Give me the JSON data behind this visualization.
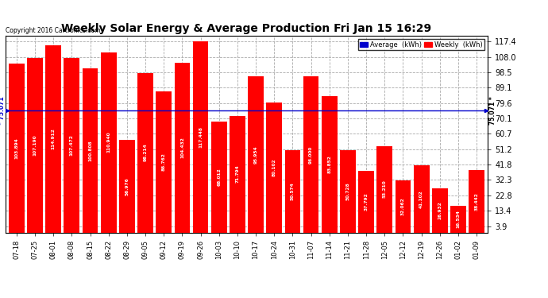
{
  "title": "Weekly Solar Energy & Average Production Fri Jan 15 16:29",
  "copyright": "Copyright 2016 Cartronics.com",
  "categories": [
    "07-18",
    "07-25",
    "08-01",
    "08-08",
    "08-15",
    "08-22",
    "08-29",
    "09-05",
    "09-12",
    "09-19",
    "09-26",
    "10-03",
    "10-10",
    "10-17",
    "10-24",
    "10-31",
    "11-07",
    "11-14",
    "11-21",
    "11-28",
    "12-05",
    "12-12",
    "12-19",
    "12-26",
    "01-02",
    "01-09"
  ],
  "values": [
    103.894,
    107.19,
    114.912,
    107.472,
    100.808,
    110.94,
    56.976,
    98.214,
    86.762,
    104.432,
    117.448,
    68.012,
    71.794,
    95.954,
    80.102,
    50.574,
    96.0,
    83.852,
    50.728,
    37.792,
    53.21,
    32.062,
    41.102,
    26.932,
    16.534,
    38.442
  ],
  "bar_color": "#ff0000",
  "average_value": 75.071,
  "yticks": [
    3.9,
    13.4,
    22.8,
    32.3,
    41.8,
    51.2,
    60.7,
    70.1,
    79.6,
    89.1,
    98.5,
    108.0,
    117.4
  ],
  "ymin": 0,
  "ymax": 121,
  "background_color": "#ffffff",
  "grid_color": "#aaaaaa",
  "bar_text_color": "#ffffff",
  "legend_avg_color": "#0000cc",
  "legend_weekly_color": "#ff0000",
  "avg_line_color": "#0000cc"
}
